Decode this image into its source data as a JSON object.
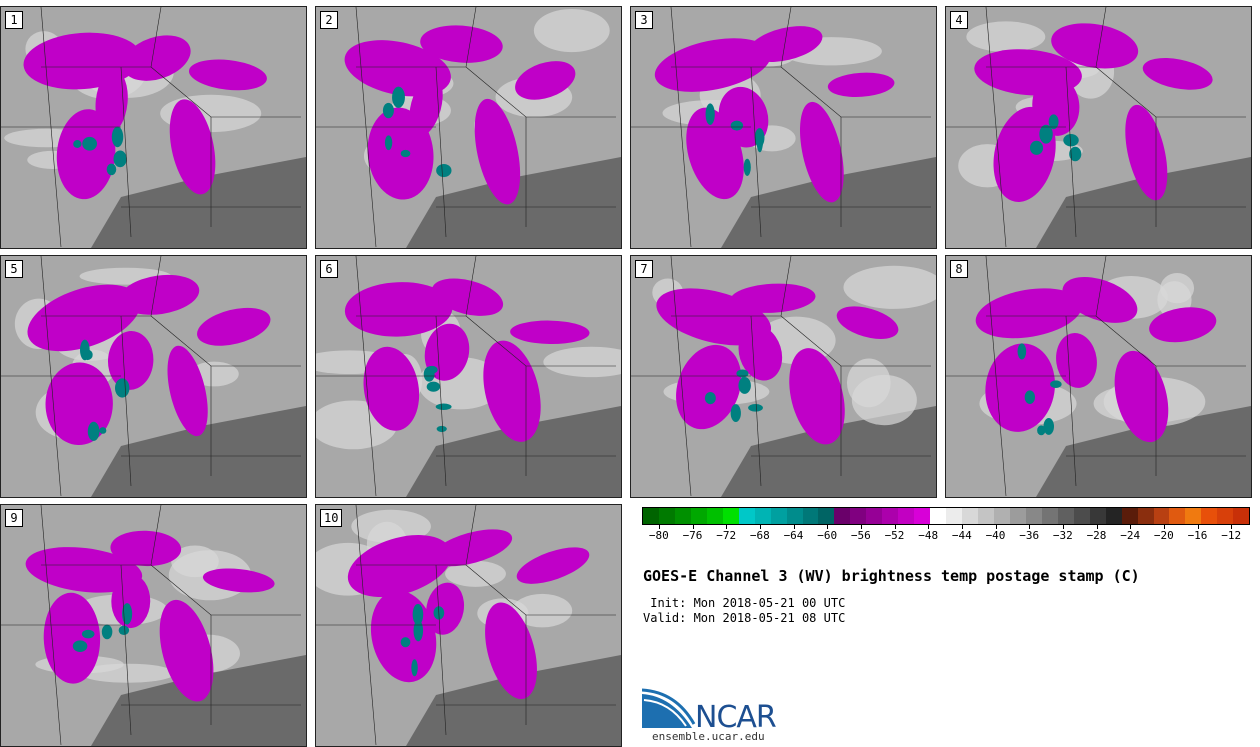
{
  "panels": [
    {
      "label": "1"
    },
    {
      "label": "2"
    },
    {
      "label": "3"
    },
    {
      "label": "4"
    },
    {
      "label": "5"
    },
    {
      "label": "6"
    },
    {
      "label": "7"
    },
    {
      "label": "8"
    },
    {
      "label": "9"
    },
    {
      "label": "10"
    }
  ],
  "colorbar": {
    "colors": [
      "#006400",
      "#007a00",
      "#009000",
      "#00a800",
      "#00c000",
      "#00e000",
      "#00c8c8",
      "#00b4b4",
      "#00a0a0",
      "#008c8c",
      "#007878",
      "#006464",
      "#6a006a",
      "#800080",
      "#960096",
      "#ac00ac",
      "#c200c2",
      "#d800d8",
      "#ffffff",
      "#ececec",
      "#d8d8d8",
      "#c4c4c4",
      "#b0b0b0",
      "#9c9c9c",
      "#888888",
      "#747474",
      "#606060",
      "#4c4c4c",
      "#383838",
      "#242424",
      "#5a1c0a",
      "#8a2e0e",
      "#b84012",
      "#e05a10",
      "#f07a10",
      "#e8500a",
      "#d8400a",
      "#c83008"
    ],
    "ticks": [
      "-80",
      "-76",
      "-72",
      "-68",
      "-64",
      "-60",
      "-56",
      "-52",
      "-48",
      "-44",
      "-40",
      "-36",
      "-32",
      "-28",
      "-24",
      "-20",
      "-16",
      "-12"
    ],
    "min": -82,
    "max": -10
  },
  "title": "GOES-E Channel 3 (WV) brightness temp postage stamp (C)",
  "init": " Init: Mon 2018-05-21 00 UTC",
  "valid": "Valid: Mon 2018-05-21 08 UTC",
  "logo_text": "NCAR",
  "site": "ensemble.ucar.edu",
  "colors": {
    "dry": "#5a5a5a",
    "mid": "#a8a8a8",
    "moist": "#d8d8d8",
    "cloud": "#c000c8",
    "cold": "#008080"
  }
}
